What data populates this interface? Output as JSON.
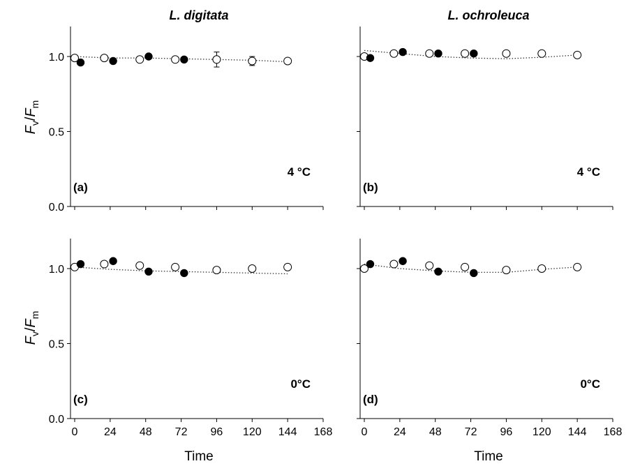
{
  "figure": {
    "column_titles": [
      "L. digitata",
      "L. ochroleuca"
    ],
    "ylabel": {
      "F": "F",
      "v": "v",
      "slash": "/",
      "F2": "F",
      "m": "m"
    },
    "xlabel": "Time"
  },
  "chart_data": [
    {
      "type": "scatter",
      "panel_label": "(a)",
      "temperature_label": "4 °C",
      "xlim": [
        0,
        168
      ],
      "ylim": [
        0,
        1.2
      ],
      "xticks": [
        0,
        24,
        48,
        72,
        96,
        120,
        144,
        168
      ],
      "yticks": [
        0.0,
        0.5,
        1.0
      ],
      "series": [
        {
          "marker": "open",
          "x": [
            0,
            20,
            44,
            68,
            96,
            120,
            144
          ],
          "y": [
            0.99,
            0.99,
            0.98,
            0.98,
            0.98,
            0.97,
            0.97
          ],
          "err": [
            0,
            0,
            0,
            0,
            0.05,
            0.03,
            0
          ]
        },
        {
          "marker": "filled",
          "x": [
            4,
            26,
            50,
            74
          ],
          "y": [
            0.96,
            0.97,
            1.0,
            0.98
          ]
        }
      ],
      "fit": {
        "x": [
          0,
          24,
          48,
          72,
          96,
          120,
          144
        ],
        "y": [
          1.0,
          0.99,
          0.99,
          0.985,
          0.98,
          0.975,
          0.965
        ]
      }
    },
    {
      "type": "scatter",
      "panel_label": "(b)",
      "temperature_label": "4 °C",
      "xlim": [
        0,
        168
      ],
      "ylim": [
        0,
        1.2
      ],
      "xticks": [
        0,
        24,
        48,
        72,
        96,
        120,
        144,
        168
      ],
      "yticks": [
        0.0,
        0.5,
        1.0
      ],
      "series": [
        {
          "marker": "open",
          "x": [
            0,
            20,
            44,
            68,
            96,
            120,
            144
          ],
          "y": [
            1.0,
            1.02,
            1.02,
            1.02,
            1.02,
            1.02,
            1.01
          ],
          "err": [
            0,
            0,
            0,
            0,
            0,
            0,
            0
          ]
        },
        {
          "marker": "filled",
          "x": [
            4,
            26,
            50,
            74
          ],
          "y": [
            0.99,
            1.03,
            1.02,
            1.02
          ]
        }
      ],
      "fit": {
        "x": [
          0,
          24,
          48,
          72,
          96,
          120,
          144
        ],
        "y": [
          1.04,
          1.02,
          1.0,
          0.99,
          0.985,
          0.995,
          1.01
        ]
      }
    },
    {
      "type": "scatter",
      "panel_label": "(c)",
      "temperature_label": "0°C",
      "xlim": [
        0,
        168
      ],
      "ylim": [
        0,
        1.2
      ],
      "xticks": [
        0,
        24,
        48,
        72,
        96,
        120,
        144,
        168
      ],
      "yticks": [
        0.0,
        0.5,
        1.0
      ],
      "series": [
        {
          "marker": "open",
          "x": [
            0,
            20,
            44,
            68,
            96,
            120,
            144
          ],
          "y": [
            1.01,
            1.03,
            1.02,
            1.01,
            0.99,
            1.0,
            1.01
          ],
          "err": [
            0,
            0,
            0,
            0,
            0,
            0,
            0
          ]
        },
        {
          "marker": "filled",
          "x": [
            4,
            26,
            50,
            74
          ],
          "y": [
            1.03,
            1.05,
            0.98,
            0.97
          ]
        }
      ],
      "fit": {
        "x": [
          0,
          24,
          48,
          72,
          96,
          120,
          144
        ],
        "y": [
          1.01,
          0.995,
          0.985,
          0.98,
          0.975,
          0.97,
          0.965
        ]
      }
    },
    {
      "type": "scatter",
      "panel_label": "(d)",
      "temperature_label": "0°C",
      "xlim": [
        0,
        168
      ],
      "ylim": [
        0,
        1.2
      ],
      "xticks": [
        0,
        24,
        48,
        72,
        96,
        120,
        144,
        168
      ],
      "yticks": [
        0.0,
        0.5,
        1.0
      ],
      "series": [
        {
          "marker": "open",
          "x": [
            0,
            20,
            44,
            68,
            96,
            120,
            144
          ],
          "y": [
            1.0,
            1.03,
            1.02,
            1.01,
            0.99,
            1.0,
            1.01
          ],
          "err": [
            0,
            0,
            0,
            0,
            0,
            0,
            0
          ]
        },
        {
          "marker": "filled",
          "x": [
            4,
            26,
            50,
            74
          ],
          "y": [
            1.03,
            1.05,
            0.98,
            0.97
          ]
        }
      ],
      "fit": {
        "x": [
          0,
          24,
          48,
          72,
          96,
          120,
          144
        ],
        "y": [
          1.03,
          1.0,
          0.985,
          0.975,
          0.975,
          0.995,
          1.01
        ]
      }
    }
  ]
}
